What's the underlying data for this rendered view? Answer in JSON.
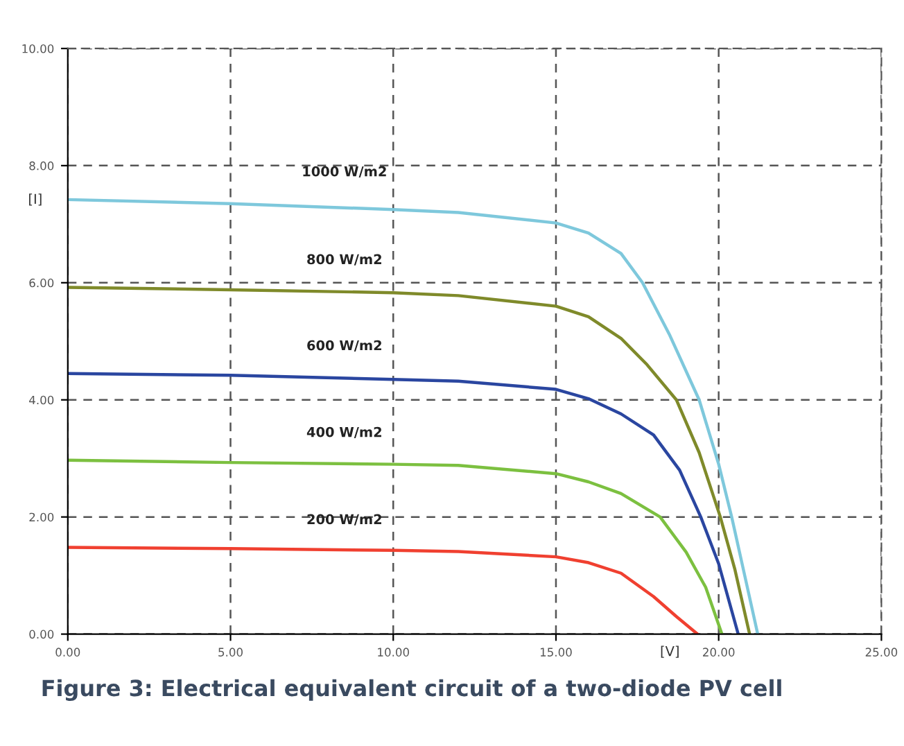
{
  "chart_data": {
    "type": "line",
    "xlabel": "[V]",
    "ylabel": "[I]",
    "xlim": [
      0,
      25
    ],
    "ylim": [
      0,
      10
    ],
    "xticks": [
      {
        "value": 0,
        "label": "0.00"
      },
      {
        "value": 5,
        "label": "5.00"
      },
      {
        "value": 10,
        "label": "10.00"
      },
      {
        "value": 15,
        "label": "15.00"
      },
      {
        "value": 20,
        "label": "20.00"
      },
      {
        "value": 25,
        "label": "25.00"
      }
    ],
    "yticks": [
      {
        "value": 0,
        "label": "0.00"
      },
      {
        "value": 2,
        "label": "2.00"
      },
      {
        "value": 4,
        "label": "4.00"
      },
      {
        "value": 6,
        "label": "6.00"
      },
      {
        "value": 8,
        "label": "8.00"
      },
      {
        "value": 10,
        "label": "10.00"
      }
    ],
    "grid": true,
    "line_style": "solid",
    "marker": "none",
    "series": [
      {
        "name": "1000 W/m2",
        "color": "#7ec8dc",
        "x": [
          0,
          5,
          10,
          12,
          15,
          16,
          17,
          17.66,
          18.5,
          19.4,
          20,
          20.4,
          20.8,
          21.2
        ],
        "values": [
          7.42,
          7.35,
          7.25,
          7.2,
          7.02,
          6.85,
          6.5,
          6.0,
          5.1,
          4.0,
          2.9,
          2.0,
          1.0,
          0
        ]
      },
      {
        "name": "800 W/m2",
        "color": "#7f8a2a",
        "x": [
          0,
          5,
          10,
          12,
          15,
          16,
          17,
          17.8,
          18.7,
          19.4,
          20.05,
          20.5,
          20.95
        ],
        "values": [
          5.92,
          5.88,
          5.83,
          5.78,
          5.6,
          5.42,
          5.05,
          4.6,
          4.0,
          3.1,
          2.0,
          1.1,
          0
        ]
      },
      {
        "name": "600 W/m2",
        "color": "#2a46a0",
        "x": [
          0,
          5,
          10,
          12,
          15,
          16,
          17,
          18,
          18.8,
          19.45,
          20,
          20.6
        ],
        "values": [
          4.45,
          4.42,
          4.35,
          4.32,
          4.18,
          4.02,
          3.76,
          3.4,
          2.8,
          2.0,
          1.2,
          0
        ]
      },
      {
        "name": "400 W/m2",
        "color": "#7cc040",
        "x": [
          0,
          5,
          10,
          12,
          15,
          16,
          17,
          18.2,
          19,
          19.6,
          20.1
        ],
        "values": [
          2.97,
          2.93,
          2.9,
          2.88,
          2.74,
          2.6,
          2.4,
          2.0,
          1.4,
          0.8,
          0
        ]
      },
      {
        "name": "200 W/m2",
        "color": "#f04030",
        "x": [
          0,
          5,
          10,
          12,
          15,
          16,
          17,
          18,
          18.7,
          19.35
        ],
        "values": [
          1.48,
          1.46,
          1.43,
          1.41,
          1.32,
          1.22,
          1.04,
          0.64,
          0.3,
          0
        ]
      }
    ],
    "annotations": [
      "Figure 3: Electrical equivalent circuit of a two-diode PV cell"
    ]
  }
}
